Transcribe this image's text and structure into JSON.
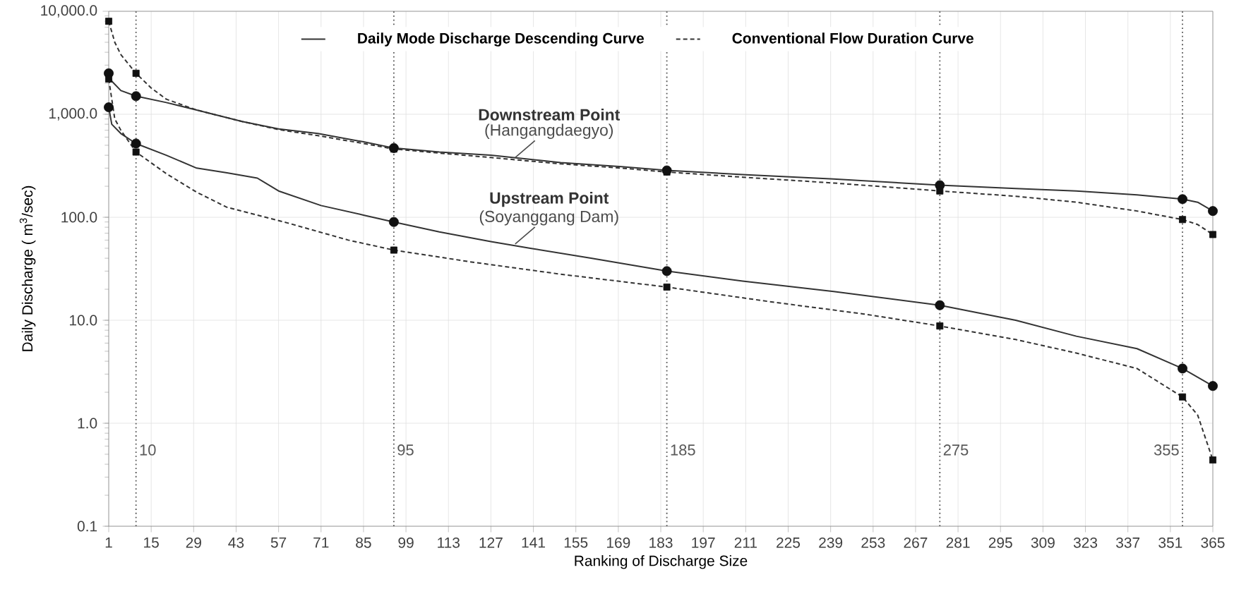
{
  "chart_data": {
    "type": "line",
    "xlabel": "Ranking of Discharge Size",
    "ylabel": "Daily Discharge ( m$^{3}$/sec)",
    "log": "y",
    "xlim": [
      1,
      365
    ],
    "ylim": [
      0.1,
      10000
    ],
    "xticks": [
      1,
      15,
      29,
      43,
      57,
      71,
      85,
      99,
      113,
      127,
      141,
      155,
      169,
      183,
      197,
      211,
      225,
      239,
      253,
      267,
      281,
      295,
      309,
      323,
      337,
      351,
      365
    ],
    "yticks": [
      {
        "value": 0.1,
        "label": "0.1"
      },
      {
        "value": 1,
        "label": "1.0"
      },
      {
        "value": 10,
        "label": "10.0"
      },
      {
        "value": 100,
        "label": "100.0"
      },
      {
        "value": 1000,
        "label": "1,000.0"
      },
      {
        "value": 10000,
        "label": "10,000.0"
      }
    ],
    "grid": true,
    "legend": "top",
    "series": [
      {
        "name": "Daily Mode Discharge Descending Curve",
        "line_style": "solid",
        "color": "#333333",
        "x": [
          1,
          2,
          5,
          10,
          20,
          30,
          45,
          57,
          70,
          85,
          95,
          110,
          127,
          150,
          170,
          185,
          210,
          240,
          275,
          300,
          320,
          340,
          355,
          360,
          365
        ],
        "values": [
          2500,
          2100,
          1700,
          1500,
          1300,
          1100,
          850,
          720,
          650,
          540,
          470,
          430,
          400,
          340,
          310,
          285,
          260,
          235,
          205,
          190,
          180,
          165,
          150,
          140,
          115
        ]
      },
      {
        "name": "Conventional Flow Duration Curve",
        "line_style": "dashed",
        "color": "#333333",
        "x": [
          1,
          3,
          5,
          10,
          15,
          20,
          30,
          45,
          57,
          70,
          85,
          95,
          110,
          127,
          150,
          170,
          185,
          210,
          240,
          275,
          300,
          320,
          340,
          355,
          360,
          365
        ],
        "values": [
          8000,
          5000,
          3800,
          2500,
          1800,
          1400,
          1100,
          850,
          710,
          620,
          520,
          460,
          420,
          380,
          330,
          300,
          275,
          245,
          215,
          180,
          160,
          140,
          115,
          95,
          85,
          68
        ]
      },
      {
        "line_style": "solid",
        "color": "#333333",
        "x": [
          1,
          2,
          5,
          10,
          20,
          30,
          40,
          50,
          57,
          71,
          85,
          95,
          110,
          127,
          140,
          160,
          185,
          210,
          240,
          275,
          300,
          320,
          340,
          355,
          365
        ],
        "values": [
          1170,
          800,
          650,
          520,
          400,
          300,
          270,
          240,
          180,
          130,
          105,
          90,
          72,
          58,
          50,
          40,
          30,
          24,
          19,
          14,
          10,
          7,
          5.3,
          3.4,
          2.3
        ]
      },
      {
        "line_style": "dashed",
        "color": "#333333",
        "x": [
          1,
          3,
          5,
          10,
          20,
          30,
          40,
          60,
          80,
          95,
          120,
          150,
          185,
          220,
          250,
          275,
          300,
          320,
          340,
          355,
          360,
          365
        ],
        "values": [
          2200,
          900,
          700,
          430,
          265,
          175,
          125,
          88,
          60,
          48,
          37,
          28,
          21,
          15,
          11.5,
          8.8,
          6.5,
          4.8,
          3.4,
          1.8,
          1.2,
          0.44
        ]
      },
      {
        "type": "scatter",
        "marker": "circle",
        "color": "#111111",
        "x": [
          1,
          10,
          95,
          185,
          275,
          355,
          365
        ],
        "values": [
          2500,
          1500,
          470,
          285,
          205,
          150,
          115
        ]
      },
      {
        "type": "scatter",
        "marker": "square",
        "color": "#111111",
        "x": [
          1,
          10,
          95,
          185,
          275,
          355,
          365
        ],
        "values": [
          8000,
          2500,
          460,
          275,
          180,
          95,
          68
        ]
      },
      {
        "type": "scatter",
        "marker": "circle",
        "color": "#111111",
        "x": [
          1,
          10,
          95,
          185,
          275,
          355,
          365
        ],
        "values": [
          1170,
          520,
          90,
          30,
          14,
          3.4,
          2.3
        ]
      },
      {
        "type": "scatter",
        "marker": "square",
        "color": "#111111",
        "x": [
          1,
          10,
          95,
          185,
          275,
          355,
          365
        ],
        "values": [
          2200,
          430,
          48,
          21,
          8.8,
          1.8,
          0.44
        ]
      }
    ],
    "ref_lines": [
      {
        "axis": "x",
        "value": 10,
        "label": "10",
        "color": "#555555",
        "line_style": "dotted"
      },
      {
        "axis": "x",
        "value": 95,
        "label": "95",
        "color": "#555555",
        "line_style": "dotted"
      },
      {
        "axis": "x",
        "value": 185,
        "label": "185",
        "color": "#555555",
        "line_style": "dotted"
      },
      {
        "axis": "x",
        "value": 275,
        "label": "275",
        "color": "#555555",
        "line_style": "dotted"
      },
      {
        "axis": "x",
        "value": 355,
        "label": "355",
        "color": "#555555",
        "line_style": "dotted"
      }
    ],
    "annotations": [
      "Downstream Point",
      {
        "text": "(Hangangdaegyo)",
        "x": 135,
        "y": 380
      },
      "Upstream Point",
      {
        "text": "(Soyanggang Dam)",
        "x": 135,
        "y": 55
      }
    ]
  }
}
